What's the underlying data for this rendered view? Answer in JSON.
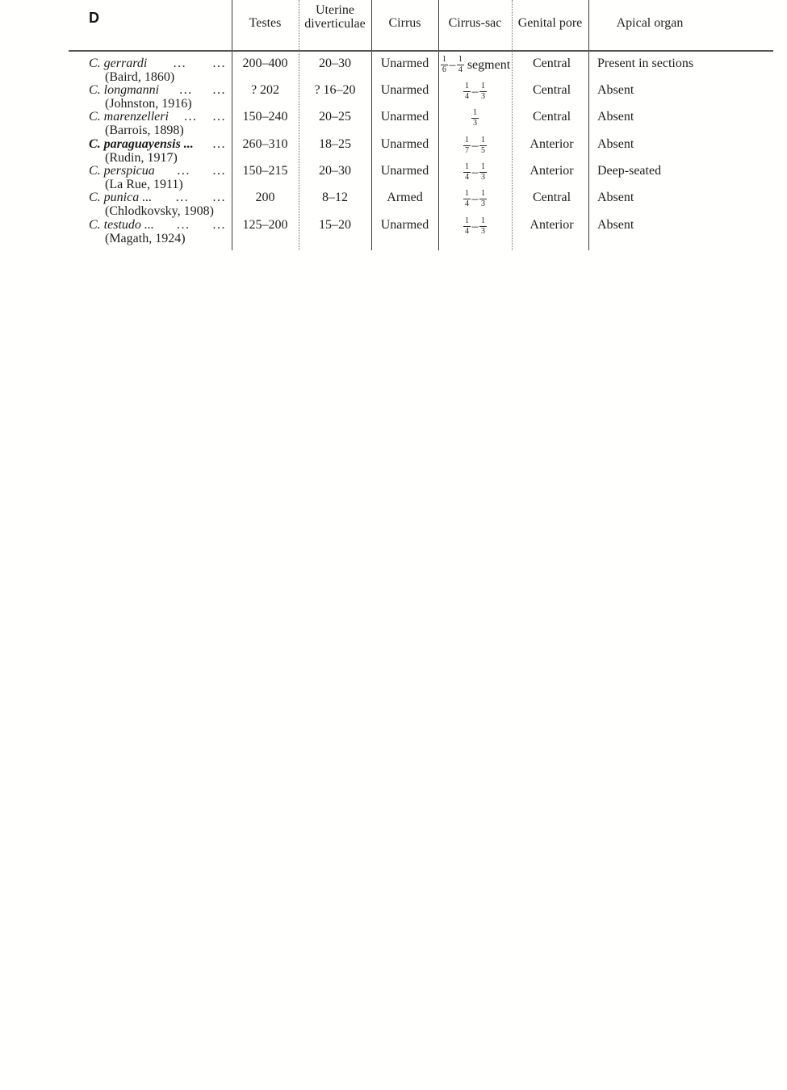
{
  "page_label": "D",
  "colors": {
    "ink": "#1d1d1d",
    "rule_solid": "#3b3b3b",
    "rule_dotted": "#6a6a6a",
    "paper": "#ffffff"
  },
  "table": {
    "headers": {
      "testes": "Testes",
      "uterine": "Uterine diverticulae",
      "cirrus": "Cirrus",
      "cirrus_sac": "Cirrus-sac",
      "genital_pore": "Genital pore",
      "apical": "Apical organ"
    },
    "rows": [
      {
        "name_segments": [
          "C. gerrardi",
          "...",
          "..."
        ],
        "bold": false,
        "authority": "(Baird, 1860)",
        "testes": "200–400",
        "uterine": "20–30",
        "cirrus": "Unarmed",
        "cirrus_sac": {
          "fractions": [
            [
              "1",
              "6"
            ],
            [
              "1",
              "4"
            ]
          ],
          "suffix": "segment"
        },
        "genital_pore": "Central",
        "apical": "Present in sections"
      },
      {
        "name_segments": [
          "C. longmanni",
          "...",
          "..."
        ],
        "bold": false,
        "authority": "(Johnston, 1916)",
        "testes": "? 202",
        "uterine": "? 16–20",
        "cirrus": "Unarmed",
        "cirrus_sac": {
          "fractions": [
            [
              "1",
              "4"
            ],
            [
              "1",
              "3"
            ]
          ],
          "suffix": ""
        },
        "genital_pore": "Central",
        "apical": "Absent"
      },
      {
        "name_segments": [
          "C. marenzelleri",
          "...",
          "..."
        ],
        "bold": false,
        "authority": "(Barrois, 1898)",
        "testes": "150–240",
        "uterine": "20–25",
        "cirrus": "Unarmed",
        "cirrus_sac": {
          "fractions": [
            [
              "1",
              "3"
            ]
          ],
          "suffix": ""
        },
        "genital_pore": "Central",
        "apical": "Absent"
      },
      {
        "name_segments": [
          "C. paraguayensis ...",
          "..."
        ],
        "bold": true,
        "authority": "(Rudin, 1917)",
        "testes": "260–310",
        "uterine": "18–25",
        "cirrus": "Unarmed",
        "cirrus_sac": {
          "fractions": [
            [
              "1",
              "7"
            ],
            [
              "1",
              "5"
            ]
          ],
          "suffix": ""
        },
        "genital_pore": "Anterior",
        "apical": "Absent"
      },
      {
        "name_segments": [
          "C. perspicua",
          "...",
          "..."
        ],
        "bold": false,
        "authority": "(La Rue, 1911)",
        "testes": "150–215",
        "uterine": "20–30",
        "cirrus": "Unarmed",
        "cirrus_sac": {
          "fractions": [
            [
              "1",
              "4"
            ],
            [
              "1",
              "3"
            ]
          ],
          "suffix": ""
        },
        "genital_pore": "Anterior",
        "apical": "Deep-seated"
      },
      {
        "name_segments": [
          "C. punica ...",
          "...",
          "..."
        ],
        "bold": false,
        "authority": "(Chlodkovsky, 1908)",
        "testes": "200",
        "uterine": "8–12",
        "cirrus": "Armed",
        "cirrus_sac": {
          "fractions": [
            [
              "1",
              "4"
            ],
            [
              "1",
              "3"
            ]
          ],
          "suffix": ""
        },
        "genital_pore": "Central",
        "apical": "Absent"
      },
      {
        "name_segments": [
          "C. testudo ...",
          "...",
          "..."
        ],
        "bold": false,
        "authority": "(Magath, 1924)",
        "testes": "125–200",
        "uterine": "15–20",
        "cirrus": "Unarmed",
        "cirrus_sac": {
          "fractions": [
            [
              "1",
              "4"
            ],
            [
              "1",
              "3"
            ]
          ],
          "suffix": ""
        },
        "genital_pore": "Anterior",
        "apical": "Absent"
      }
    ]
  }
}
